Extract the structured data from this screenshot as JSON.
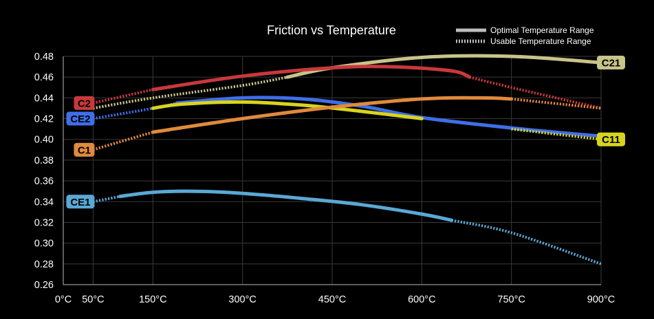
{
  "chart_data": {
    "type": "line",
    "title": "Friction vs Temperature",
    "xlabel": "",
    "ylabel": "",
    "xlim": [
      0,
      900
    ],
    "ylim": [
      0.26,
      0.48
    ],
    "x_ticks": [
      {
        "value": 0,
        "label": "0°C"
      },
      {
        "value": 50,
        "label": "50°C"
      },
      {
        "value": 150,
        "label": "150°C"
      },
      {
        "value": 300,
        "label": "300°C"
      },
      {
        "value": 450,
        "label": "450°C"
      },
      {
        "value": 600,
        "label": "600°C"
      },
      {
        "value": 750,
        "label": "750°C"
      },
      {
        "value": 900,
        "label": "900°C"
      }
    ],
    "y_ticks": [
      {
        "value": 0.26,
        "label": "0.26"
      },
      {
        "value": 0.28,
        "label": "0.28"
      },
      {
        "value": 0.3,
        "label": "0.30"
      },
      {
        "value": 0.32,
        "label": "0.32"
      },
      {
        "value": 0.34,
        "label": "0.34"
      },
      {
        "value": 0.36,
        "label": "0.36"
      },
      {
        "value": 0.38,
        "label": "0.38"
      },
      {
        "value": 0.4,
        "label": "0.40"
      },
      {
        "value": 0.42,
        "label": "0.42"
      },
      {
        "value": 0.44,
        "label": "0.44"
      },
      {
        "value": 0.46,
        "label": "0.46"
      },
      {
        "value": 0.48,
        "label": "0.48"
      }
    ],
    "grid": true,
    "legend": {
      "placement": "top-right",
      "entries": [
        {
          "label": "Optimal Temperature Range",
          "style": "solid"
        },
        {
          "label": "Usable Temperature Range",
          "style": "dotted"
        }
      ]
    },
    "series": [
      {
        "name": "C21",
        "color": "#c8c48a",
        "label_side": "right",
        "x": [
          50,
          150,
          300,
          375,
          450,
          600,
          750,
          900
        ],
        "y": [
          0.43,
          0.44,
          0.452,
          0.46,
          0.469,
          0.479,
          0.48,
          0.474
        ],
        "optimal_range": [
          375,
          900
        ]
      },
      {
        "name": "C2",
        "color": "#c8383c",
        "label_side": "left",
        "x": [
          50,
          150,
          300,
          450,
          550,
          650,
          680,
          750,
          900
        ],
        "y": [
          0.435,
          0.448,
          0.461,
          0.469,
          0.47,
          0.466,
          0.46,
          0.45,
          0.43
        ],
        "optimal_range": [
          150,
          680
        ]
      },
      {
        "name": "CE2",
        "color": "#3f6ee8",
        "label_side": "left",
        "x": [
          50,
          150,
          190,
          300,
          400,
          500,
          600,
          750,
          900
        ],
        "y": [
          0.42,
          0.43,
          0.435,
          0.44,
          0.439,
          0.432,
          0.421,
          0.411,
          0.403
        ],
        "optimal_range": [
          190,
          900
        ]
      },
      {
        "name": "C11",
        "color": "#d7d41e",
        "label_side": "right",
        "x": [
          150,
          200,
          300,
          400,
          500,
          600,
          750,
          900
        ],
        "y": [
          0.43,
          0.434,
          0.436,
          0.433,
          0.427,
          0.42,
          0.41,
          0.4
        ],
        "optimal_range": [
          150,
          700
        ]
      },
      {
        "name": "C1",
        "color": "#e08a3c",
        "label_side": "left",
        "x": [
          50,
          150,
          300,
          450,
          600,
          700,
          750,
          900
        ],
        "y": [
          0.39,
          0.407,
          0.42,
          0.431,
          0.439,
          0.44,
          0.439,
          0.43
        ],
        "optimal_range": [
          150,
          750
        ]
      },
      {
        "name": "CE1",
        "color": "#5aa8d4",
        "label_side": "left",
        "x": [
          50,
          95,
          150,
          220,
          300,
          400,
          500,
          600,
          650,
          750,
          900
        ],
        "y": [
          0.34,
          0.345,
          0.349,
          0.35,
          0.348,
          0.343,
          0.337,
          0.328,
          0.322,
          0.31,
          0.28
        ],
        "optimal_range": [
          95,
          650
        ]
      }
    ]
  }
}
